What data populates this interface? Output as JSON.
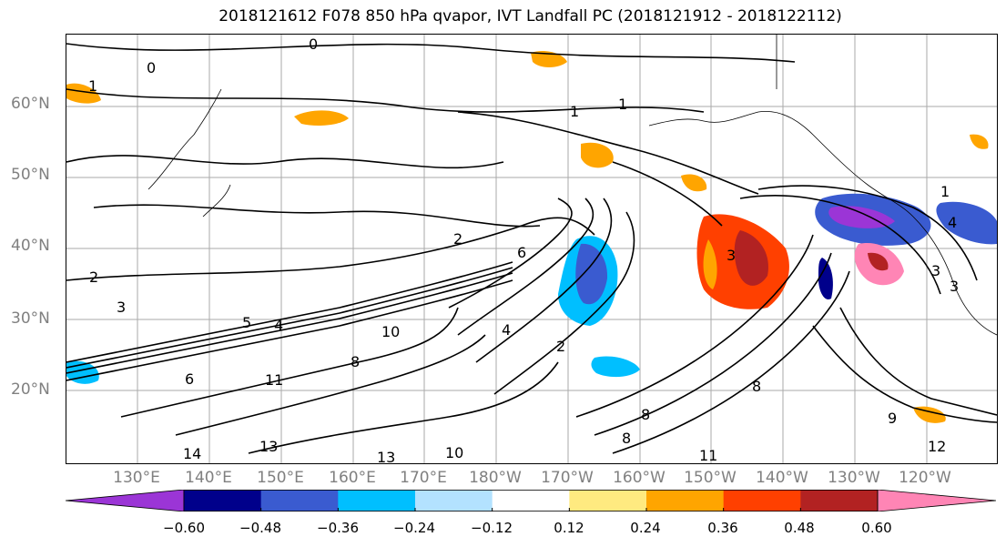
{
  "title": "2018121612 F078 850 hPa qvapor, IVT Landfall PC (2018121912 - 2018122112)",
  "lat_labels": [
    "60°N",
    "50°N",
    "40°N",
    "30°N",
    "20°N"
  ],
  "lon_labels": [
    "130°E",
    "140°E",
    "150°E",
    "160°E",
    "170°E",
    "180°W",
    "170°W",
    "160°W",
    "150°W",
    "140°W",
    "130°W",
    "120°W"
  ],
  "colorbar": {
    "colors": [
      "#9b35d6",
      "#00008b",
      "#3a5bd0",
      "#00bfff",
      "#b3e2ff",
      "#ffffff",
      "#ffea80",
      "#ffa500",
      "#ff4000",
      "#b22222",
      "#ff85b5"
    ],
    "tick_labels": [
      "−0.60",
      "−0.48",
      "−0.36",
      "−0.24",
      "−0.12",
      "0.12",
      "0.24",
      "0.36",
      "0.48",
      "0.60"
    ]
  },
  "contour_labels": [
    "0",
    "0",
    "1",
    "1",
    "1",
    "1",
    "2",
    "2",
    "2",
    "3",
    "3",
    "3",
    "4",
    "4",
    "5",
    "6",
    "6",
    "8",
    "8",
    "8",
    "8",
    "9",
    "10",
    "10",
    "11",
    "11",
    "12",
    "13",
    "13",
    "14",
    "4",
    "3"
  ]
}
